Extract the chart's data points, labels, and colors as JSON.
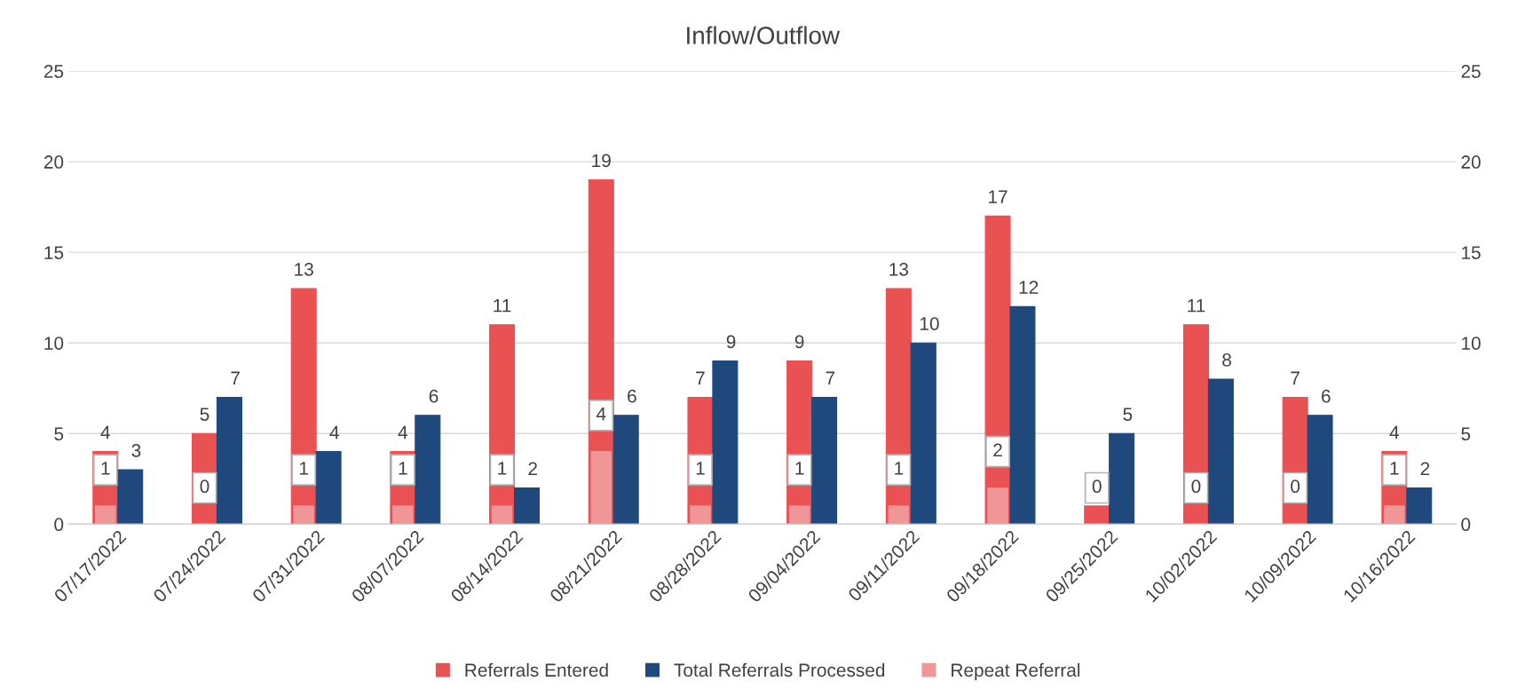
{
  "chart_data": {
    "type": "bar",
    "title": "Inflow/Outflow",
    "categories": [
      "07/17/2022",
      "07/24/2022",
      "07/31/2022",
      "08/07/2022",
      "08/14/2022",
      "08/21/2022",
      "08/28/2022",
      "09/04/2022",
      "09/11/2022",
      "09/18/2022",
      "09/25/2022",
      "10/02/2022",
      "10/09/2022",
      "10/16/2022"
    ],
    "series": [
      {
        "name": "Referrals Entered",
        "color": "#e95153",
        "values": [
          4,
          5,
          13,
          4,
          11,
          19,
          7,
          9,
          13,
          17,
          1,
          11,
          7,
          4
        ],
        "value_labels": [
          "4",
          "5",
          "13",
          "4",
          "11",
          "19",
          "7",
          "9",
          "13",
          "17",
          null,
          "11",
          "7",
          "4"
        ]
      },
      {
        "name": "Total Referrals Processed",
        "color": "#1f497d",
        "values": [
          3,
          7,
          4,
          6,
          2,
          6,
          9,
          7,
          10,
          12,
          5,
          8,
          6,
          2
        ],
        "value_labels": [
          "3",
          "7",
          "4",
          "6",
          "2",
          "6",
          "9",
          "7",
          "10",
          "12",
          "5",
          "8",
          "6",
          "2"
        ]
      },
      {
        "name": "Repeat Referral",
        "color": "#f19696",
        "axis": "y2",
        "values": [
          1,
          0,
          1,
          1,
          1,
          4,
          1,
          1,
          1,
          2,
          0,
          0,
          0,
          1
        ],
        "value_labels": [
          "1",
          "0",
          "1",
          "1",
          "1",
          "4",
          "1",
          "1",
          "1",
          "2",
          "0",
          "0",
          "0",
          "1"
        ]
      }
    ],
    "ylim": [
      0,
      25
    ],
    "yticks": [
      0,
      5,
      10,
      15,
      20,
      25
    ],
    "y2lim": [
      0,
      25
    ],
    "y2ticks": [
      0,
      5,
      10,
      15,
      20,
      25
    ],
    "grid": "y",
    "legend": "bottom"
  }
}
